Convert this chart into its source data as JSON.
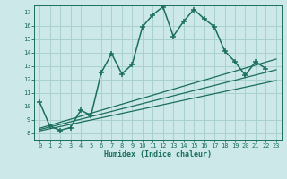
{
  "xlabel": "Humidex (Indice chaleur)",
  "bg_color": "#cce8e8",
  "grid_color": "#aad0d0",
  "line_color": "#1a6e5e",
  "xlim": [
    -0.5,
    23.5
  ],
  "ylim": [
    7.5,
    17.5
  ],
  "xticks": [
    0,
    1,
    2,
    3,
    4,
    5,
    6,
    7,
    8,
    9,
    10,
    11,
    12,
    13,
    14,
    15,
    16,
    17,
    18,
    19,
    20,
    21,
    22,
    23
  ],
  "yticks": [
    8,
    9,
    10,
    11,
    12,
    13,
    14,
    15,
    16,
    17
  ],
  "main_x": [
    0,
    1,
    2,
    3,
    4,
    5,
    6,
    7,
    8,
    9,
    10,
    11,
    12,
    13,
    14,
    15,
    16,
    17,
    18,
    19,
    20,
    21,
    22
  ],
  "main_y": [
    10.3,
    8.5,
    8.2,
    8.4,
    9.7,
    9.3,
    12.5,
    13.9,
    12.4,
    13.1,
    15.9,
    16.8,
    17.4,
    15.2,
    16.3,
    17.2,
    16.5,
    15.9,
    14.1,
    13.3,
    12.3,
    13.3,
    12.8
  ],
  "diag_lines": [
    {
      "x0": 0,
      "y0": 8.25,
      "x1": 23,
      "y1": 12.7
    },
    {
      "x0": 0,
      "y0": 8.15,
      "x1": 23,
      "y1": 11.9
    },
    {
      "x0": 0,
      "y0": 8.35,
      "x1": 23,
      "y1": 13.5
    }
  ]
}
